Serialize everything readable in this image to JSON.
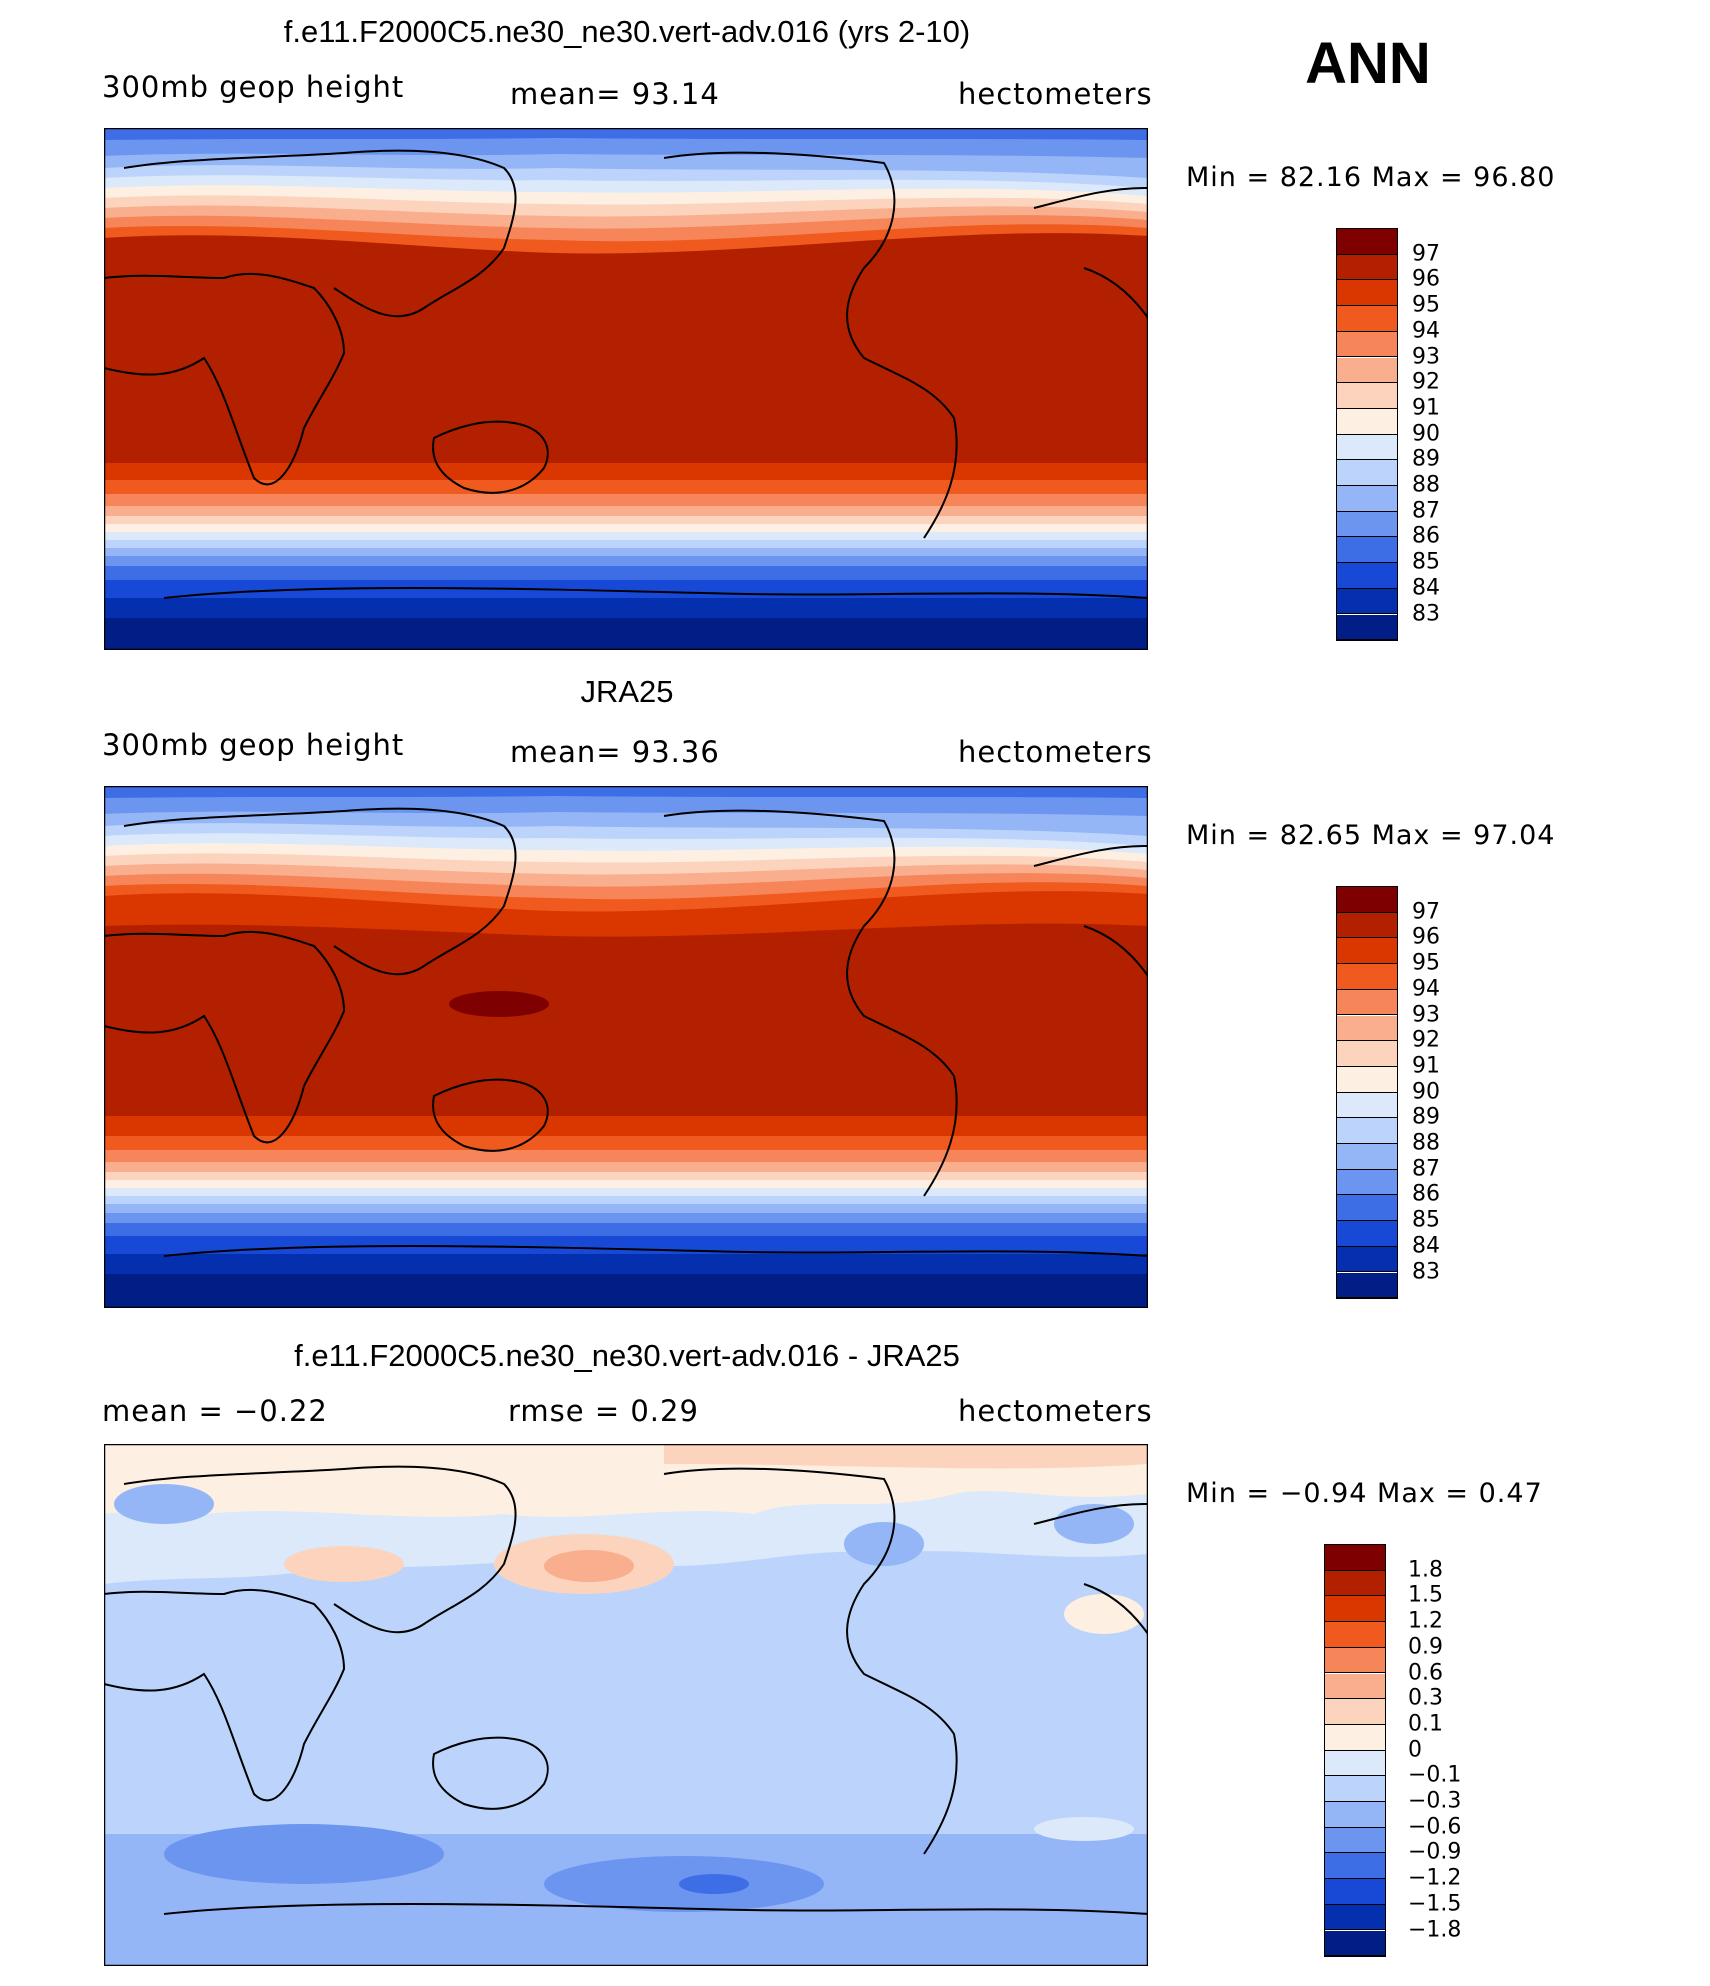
{
  "season": "ANN",
  "units": "hectometers",
  "panels": [
    {
      "title": "f.e11.F2000C5.ne30_ne30.vert-adv.016 (yrs 2-10)",
      "left_label": "300mb geop height",
      "center_label": "mean=   93.14",
      "right_label": "hectometers",
      "stats": "Min =   82.16 Max =   96.80",
      "colorbar_ticks": [
        "97",
        "96",
        "95",
        "94",
        "93",
        "92",
        "91",
        "90",
        "89",
        "88",
        "87",
        "86",
        "85",
        "84",
        "83"
      ]
    },
    {
      "title": "JRA25",
      "left_label": "300mb geop height",
      "center_label": "mean=   93.36",
      "right_label": "hectometers",
      "stats": "Min =   82.65 Max =   97.04",
      "colorbar_ticks": [
        "97",
        "96",
        "95",
        "94",
        "93",
        "92",
        "91",
        "90",
        "89",
        "88",
        "87",
        "86",
        "85",
        "84",
        "83"
      ]
    },
    {
      "title": "f.e11.F2000C5.ne30_ne30.vert-adv.016 - JRA25",
      "left_label": "mean =   −0.22",
      "center_label": "rmse =    0.29",
      "right_label": "hectometers",
      "stats": "Min =   −0.94 Max =    0.47",
      "colorbar_ticks": [
        "1.8",
        "1.5",
        "1.2",
        "0.9",
        "0.6",
        "0.3",
        "0.1",
        "0",
        "−0.1",
        "−0.3",
        "−0.6",
        "−0.9",
        "−1.2",
        "−1.5",
        "−1.8"
      ]
    }
  ],
  "colors": {
    "palette": [
      "#7f0000",
      "#b22000",
      "#d93600",
      "#f05a1e",
      "#f6865a",
      "#f9ae8e",
      "#fcd4be",
      "#fdf0e2",
      "#dbe9fa",
      "#bcd4fb",
      "#94b6f6",
      "#6c95f0",
      "#3d6ee6",
      "#1748d6",
      "#0430b0",
      "#011d86"
    ]
  }
}
